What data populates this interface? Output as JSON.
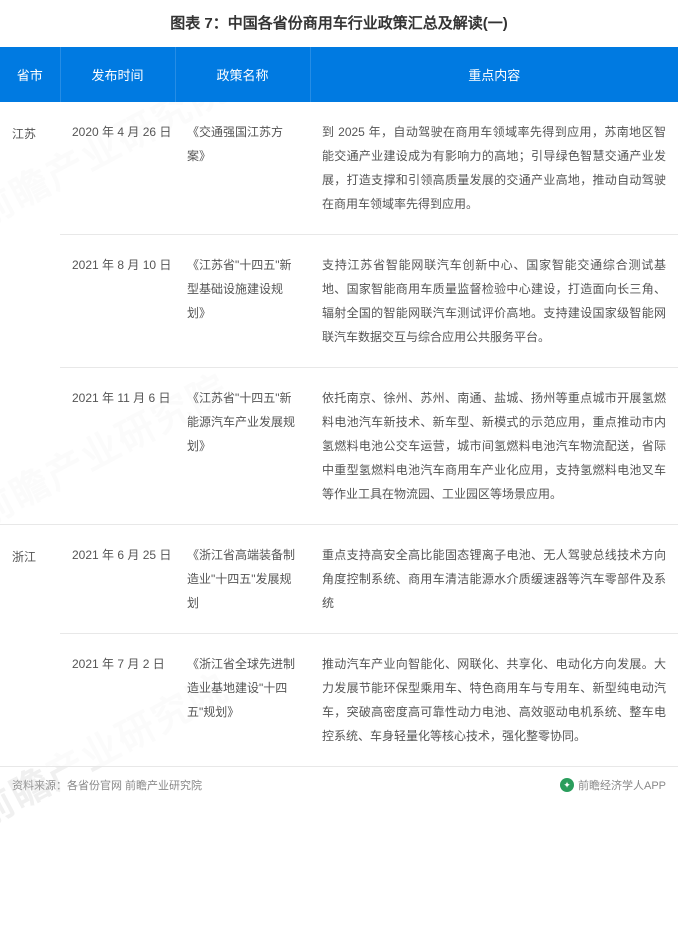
{
  "title": "图表 7：中国各省份商用车行业政策汇总及解读(一)",
  "watermark_text": "前瞻产业研究院",
  "header": {
    "province": "省市",
    "date": "发布时间",
    "policy": "政策名称",
    "content": "重点内容"
  },
  "colors": {
    "header_bg": "#007ae1",
    "header_text": "#ffffff",
    "border": "#e8e8e8",
    "body_text": "#555555",
    "title_text": "#333333",
    "footer_text": "#888888",
    "watermark": "rgba(200,200,200,0.28)",
    "logo": "#2a9d5c"
  },
  "provinces": [
    {
      "name": "江苏",
      "rows": [
        {
          "date": "2020 年 4 月 26 日",
          "policy": "《交通强国江苏方案》",
          "content": "到 2025 年，自动驾驶在商用车领域率先得到应用，苏南地区智能交通产业建设成为有影响力的高地；引导绿色智慧交通产业发展，打造支撑和引领高质量发展的交通产业高地，推动自动驾驶在商用车领域率先得到应用。"
        },
        {
          "date": "2021 年 8 月 10 日",
          "policy": "《江苏省\"十四五\"新型基础设施建设规划》",
          "content": "支持江苏省智能网联汽车创新中心、国家智能交通综合测试基地、国家智能商用车质量监督检验中心建设，打造面向长三角、辐射全国的智能网联汽车测试评价高地。支持建设国家级智能网联汽车数据交互与综合应用公共服务平台。"
        },
        {
          "date": "2021 年 11 月 6 日",
          "policy": "《江苏省\"十四五\"新能源汽车产业发展规划》",
          "content": "依托南京、徐州、苏州、南通、盐城、扬州等重点城市开展氢燃料电池汽车新技术、新车型、新模式的示范应用，重点推动市内氢燃料电池公交车运营，城市间氢燃料电池汽车物流配送，省际中重型氢燃料电池汽车商用车产业化应用，支持氢燃料电池叉车等作业工具在物流园、工业园区等场景应用。"
        }
      ]
    },
    {
      "name": "浙江",
      "rows": [
        {
          "date": "2021 年 6 月 25 日",
          "policy": "《浙江省高端装备制造业\"十四五\"发展规划",
          "content": "重点支持高安全高比能固态锂离子电池、无人驾驶总线技术方向角度控制系统、商用车清洁能源水介质缓速器等汽车零部件及系统"
        },
        {
          "date": "2021 年 7 月 2 日",
          "policy": "《浙江省全球先进制造业基地建设\"十四五\"规划》",
          "content": "推动汽车产业向智能化、网联化、共享化、电动化方向发展。大力发展节能环保型乘用车、特色商用车与专用车、新型纯电动汽车，突破高密度高可靠性动力电池、高效驱动电机系统、整车电控系统、车身轻量化等核心技术，强化整零协同。"
        }
      ]
    }
  ],
  "footer": {
    "source": "资料来源：各省份官网 前瞻产业研究院",
    "brand": "前瞻经济学人APP"
  }
}
